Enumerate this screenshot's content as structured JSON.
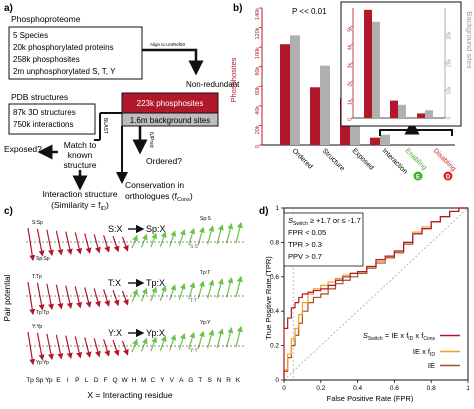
{
  "panel_a": {
    "label": "a)",
    "phosphoproteome": {
      "title": "Phosphoproteome",
      "lines": [
        "5 Species",
        "20k phosphorylated proteins",
        "258k phosphosites",
        "2m unphosphorylated S, T, Y"
      ]
    },
    "align_label": "Align to UniRef50",
    "non_redundant": "Non-redundant",
    "pdb": {
      "title": "PDB structures",
      "lines": [
        "87k 3D structures",
        "750k interactions"
      ]
    },
    "red_box": "223k phosphosites",
    "gray_box": "1.6m background sites",
    "blast": "BLAST",
    "iupred": "IUPred",
    "ordered_q": "Ordered?",
    "match": [
      "Match to",
      "known",
      "structure"
    ],
    "exposed_q": "Exposed?",
    "conservation": "Conservation in",
    "orthologues": "orthologues (f",
    "orthologues_sub": "Cons",
    "interaction": "Interaction structure",
    "similarity": "(Similarity = f",
    "similarity_sub": "ID"
  },
  "panel_b": {
    "label": "b)",
    "pvalue": "P << 0.01",
    "ylabel_left": "Phosphosites",
    "ylabel_right": "Background sites",
    "inset_ylabel_right": "Background sites",
    "chart_data": {
      "type": "bar",
      "categories": [
        "Ordered",
        "Structure",
        "Exposed",
        "Interaction"
      ],
      "series": [
        {
          "color": "#b2182b",
          "values": [
            103000,
            59000,
            48000,
            7500
          ]
        },
        {
          "color": "#b0b0b0",
          "values": [
            960000,
            695000,
            480000,
            90000
          ]
        }
      ],
      "ylim_left": [
        0,
        140000
      ],
      "ylim_right": [
        0,
        1200000
      ],
      "yticks_left": [
        "0",
        "20k",
        "40k",
        "60k",
        "80k",
        "100k",
        "120k",
        "140k"
      ],
      "yticks_right": [
        "0",
        "0.2m",
        "0.4m",
        "0.6m",
        "0.8m",
        "1m",
        "1.2m"
      ],
      "extra_labels": [
        "Enabling",
        "Disabling"
      ],
      "inset": {
        "categories": [
          "Interaction",
          "Enabling",
          "Disabling"
        ],
        "series": [
          {
            "color": "#b2182b",
            "values": [
              5900,
              950,
              250
            ]
          },
          {
            "color": "#b0b0b0",
            "values": [
              35000,
              4800,
              2800
            ]
          }
        ],
        "ylim_left": [
          0,
          6000
        ],
        "ylim_right": [
          0,
          40000
        ],
        "yticks_left": [
          "0",
          "1k",
          "2k",
          "3k",
          "4k",
          "5k"
        ],
        "yticks_right": [
          "0",
          "10k",
          "20k",
          "30k"
        ]
      }
    },
    "enabling_badge": "E",
    "disabling_badge": "D"
  },
  "panel_c": {
    "label": "c)",
    "ylabel": "Pair potential",
    "xlabel": "X = Interacting residue",
    "x_residues": [
      "Tp",
      "Sp",
      "Yp",
      "E",
      "I",
      "P",
      "L",
      "D",
      "F",
      "Q",
      "W",
      "H",
      "M",
      "C",
      "Y",
      "V",
      "A",
      "G",
      "T",
      "S",
      "N",
      "R",
      "K"
    ],
    "rows": [
      {
        "title": "S:X",
        "arrow_to": "Sp:X",
        "left_top": "S:Sp",
        "left_bottom": "Sp:Sp",
        "right_top": "Sp:S",
        "right_bottom": "S:S"
      },
      {
        "title": "T:X",
        "arrow_to": "Tp:X",
        "left_top": "T:Tp",
        "left_bottom": "Tp:Tp",
        "right_top": "Tp:T",
        "right_bottom": "T:T"
      },
      {
        "title": "Y:X",
        "arrow_to": "Yp:X",
        "left_top": "Y:Yp",
        "left_bottom": "Yp:Yp",
        "right_top": "Yp:Y",
        "right_bottom": "Y:Y"
      }
    ]
  },
  "panel_d": {
    "label": "d)",
    "ylabel": "True Positive Rate (TPR)",
    "xlabel": "False Positive Rate (FPR)",
    "criteria": {
      "line1_main": "S",
      "line1_sub": "Switch",
      "line1_rest": " ≥ +1.7 or ≤ -1.7",
      "line2": "FPR < 0.05",
      "line3": "TPR > 0.3",
      "line4": "PPV > 0.7"
    },
    "chart_data": {
      "type": "line",
      "xlim": [
        0,
        1
      ],
      "ylim": [
        0,
        1
      ],
      "xticks": [
        "0",
        "0.2",
        "0.4",
        "0.6",
        "0.8",
        "1"
      ],
      "yticks": [
        "0",
        "0.2",
        "0.4",
        "0.6",
        "0.8",
        "1"
      ],
      "series": [
        {
          "color": "#b2182b",
          "legend_main": "S",
          "legend_sub": "Switch",
          "legend_rest": " = IE x f",
          "legend_sub2": "ID",
          "legend_rest2": " x f",
          "legend_sub3": "Cons",
          "x": [
            0,
            0.02,
            0.04,
            0.06,
            0.08,
            0.1,
            0.13,
            0.16,
            0.2,
            0.24,
            0.28,
            0.32,
            0.36,
            0.4,
            0.45,
            0.5,
            0.55,
            0.6,
            0.65,
            0.7,
            0.75,
            0.8,
            0.85,
            0.9,
            0.95,
            1
          ],
          "y": [
            0,
            0.3,
            0.36,
            0.42,
            0.45,
            0.48,
            0.5,
            0.51,
            0.52,
            0.53,
            0.55,
            0.58,
            0.6,
            0.62,
            0.63,
            0.66,
            0.7,
            0.72,
            0.75,
            0.8,
            0.85,
            0.88,
            0.92,
            0.95,
            0.98,
            1
          ]
        },
        {
          "color": "#f0a020",
          "legend_main": "IE x f",
          "legend_sub": "ID",
          "x": [
            0,
            0.02,
            0.04,
            0.06,
            0.08,
            0.1,
            0.13,
            0.16,
            0.2,
            0.24,
            0.28,
            0.32,
            0.36,
            0.4,
            0.45,
            0.5,
            0.55,
            0.6,
            0.65,
            0.7,
            0.75,
            0.8,
            0.85,
            0.9,
            0.95,
            1
          ],
          "y": [
            0,
            0.06,
            0.15,
            0.24,
            0.3,
            0.38,
            0.45,
            0.5,
            0.53,
            0.55,
            0.57,
            0.59,
            0.61,
            0.62,
            0.63,
            0.66,
            0.69,
            0.72,
            0.75,
            0.8,
            0.86,
            0.89,
            0.92,
            0.95,
            0.98,
            1
          ]
        },
        {
          "color": "#a0522d",
          "legend_main": "IE",
          "x": [
            0,
            0.02,
            0.04,
            0.06,
            0.08,
            0.1,
            0.13,
            0.16,
            0.2,
            0.24,
            0.28,
            0.32,
            0.36,
            0.4,
            0.45,
            0.5,
            0.55,
            0.6,
            0.65,
            0.7,
            0.75,
            0.8,
            0.85,
            0.9,
            0.95,
            1
          ],
          "y": [
            0,
            0.05,
            0.13,
            0.2,
            0.26,
            0.33,
            0.4,
            0.45,
            0.48,
            0.5,
            0.53,
            0.56,
            0.58,
            0.6,
            0.62,
            0.65,
            0.68,
            0.71,
            0.74,
            0.79,
            0.85,
            0.88,
            0.92,
            0.95,
            0.98,
            1
          ]
        }
      ]
    }
  }
}
